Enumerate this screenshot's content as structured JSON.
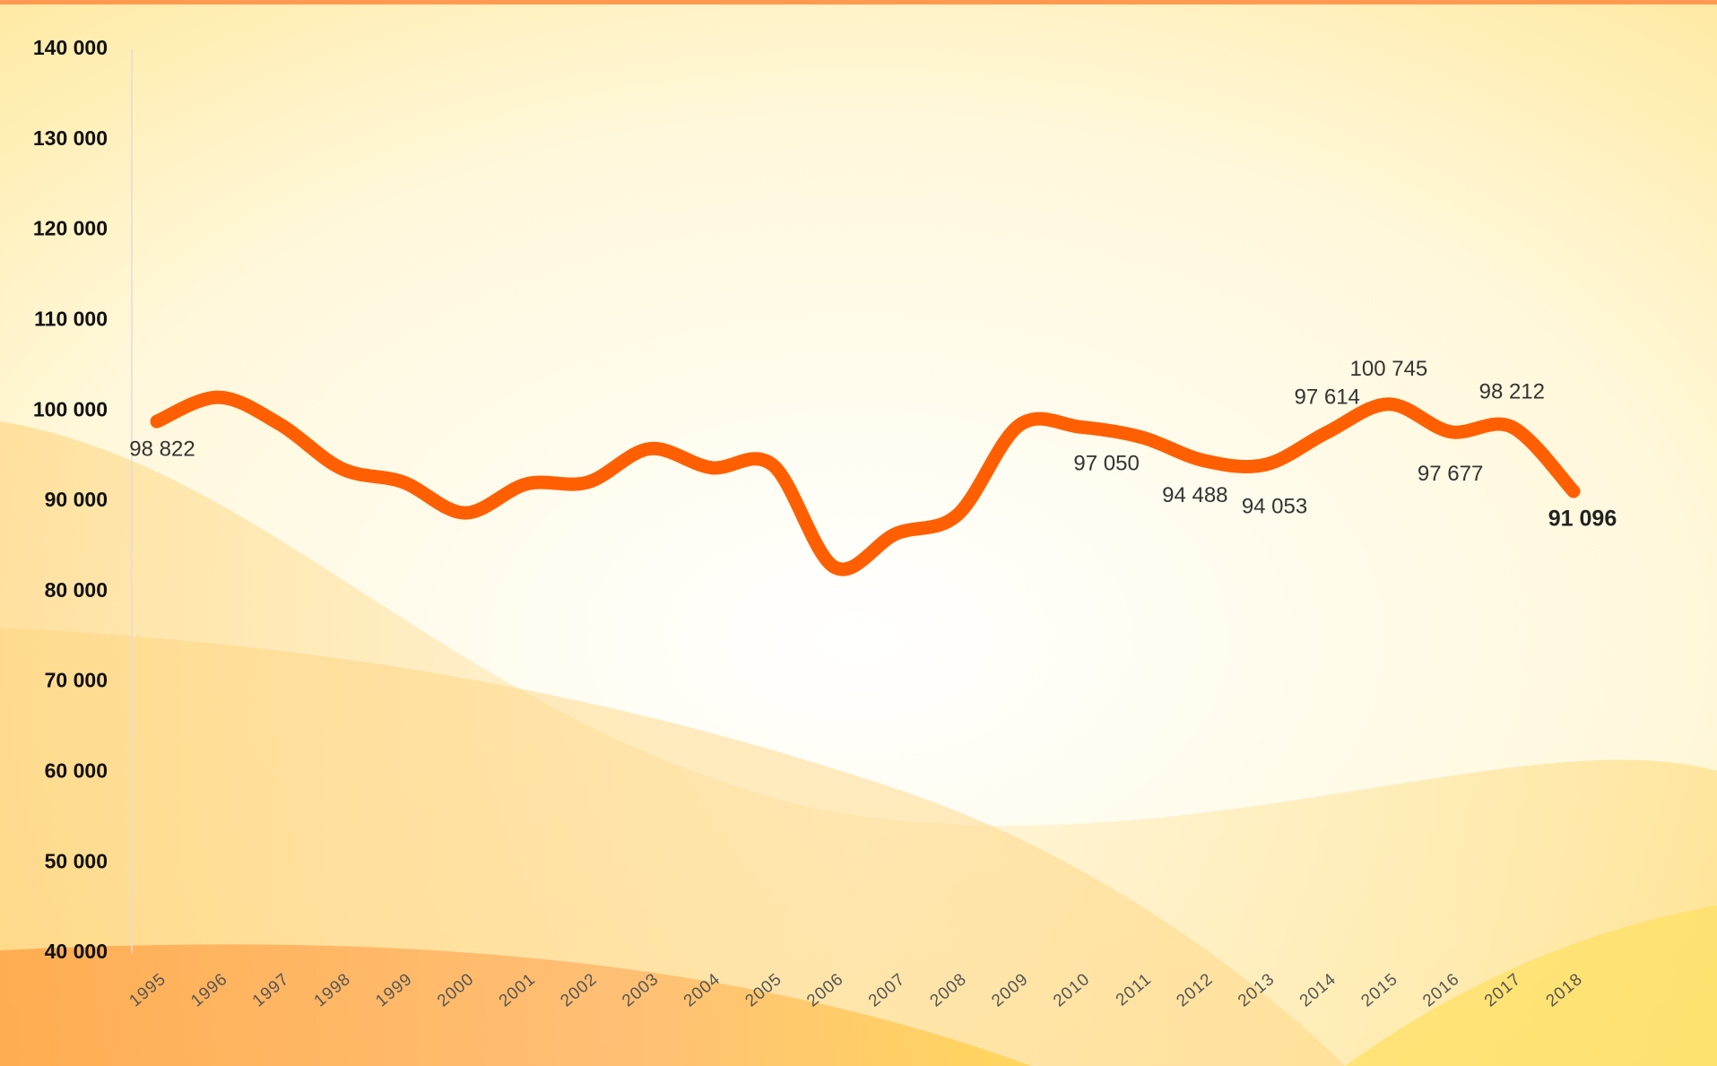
{
  "chart_data": {
    "type": "line",
    "categories": [
      "1995",
      "1996",
      "1997",
      "1998",
      "1999",
      "2000",
      "2001",
      "2002",
      "2003",
      "2004",
      "2005",
      "2006",
      "2007",
      "2008",
      "2009",
      "2010",
      "2011",
      "2012",
      "2013",
      "2014",
      "2015",
      "2016",
      "2017",
      "2018"
    ],
    "series": [
      {
        "color": "#ff5f00",
        "values": [
          98822,
          101500,
          98500,
          93600,
          92100,
          88700,
          91900,
          92100,
          95800,
          93700,
          94000,
          82700,
          86400,
          88500,
          98400,
          98200,
          97050,
          94488,
          94053,
          97614,
          100745,
          97677,
          98212,
          91096
        ],
        "value_labels": [
          "98 822",
          null,
          null,
          null,
          null,
          null,
          null,
          null,
          null,
          null,
          null,
          null,
          null,
          null,
          null,
          null,
          "97 050",
          "94 488",
          "94 053",
          "97 614",
          "100 745",
          "97 677",
          "98 212",
          "91 096"
        ]
      }
    ],
    "ylim": [
      40000,
      140000
    ],
    "yticks": [
      {
        "value": 40000,
        "label": "40 000"
      },
      {
        "value": 50000,
        "label": "50 000"
      },
      {
        "value": 60000,
        "label": "60 000"
      },
      {
        "value": 70000,
        "label": "70 000"
      },
      {
        "value": 80000,
        "label": "80 000"
      },
      {
        "value": 90000,
        "label": "90 000"
      },
      {
        "value": 100000,
        "label": "100 000"
      },
      {
        "value": 110000,
        "label": "110 000"
      },
      {
        "value": 120000,
        "label": "120 000"
      },
      {
        "value": 130000,
        "label": "130 000"
      },
      {
        "value": 140000,
        "label": "140 000"
      }
    ],
    "smooth": true
  }
}
